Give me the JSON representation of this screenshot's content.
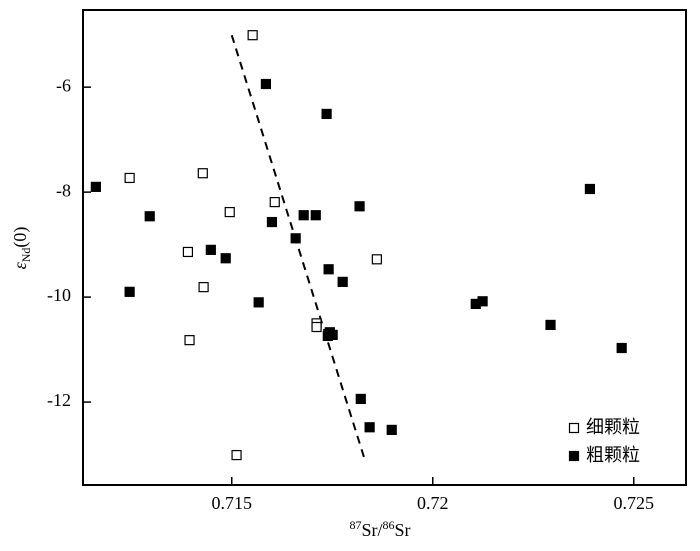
{
  "chart_data": {
    "type": "scatter",
    "x_label": [
      "87",
      "Sr/",
      "86",
      "Sr"
    ],
    "y_label": [
      "ε",
      "Nd",
      "(0)"
    ],
    "xlim": [
      0.7113,
      0.7263
    ],
    "xticks": [
      0.715,
      0.72,
      0.725
    ],
    "ylim": [
      -13.58,
      -4.53
    ],
    "yticks": [
      -6,
      -8,
      -10,
      -12
    ],
    "legend": "lower right",
    "series": [
      {
        "name": "细颗粒",
        "marker": "open",
        "color": "#000000",
        "x": [
          0.71552,
          0.71246,
          0.71428,
          0.71495,
          0.71607,
          0.71391,
          0.71861,
          0.7143,
          0.71711,
          0.71711,
          0.71395,
          0.71512
        ],
        "y": [
          -5.01,
          -7.73,
          -7.64,
          -8.38,
          -8.19,
          -9.14,
          -9.28,
          -9.81,
          -10.5,
          -10.57,
          -10.82,
          -13.01
        ]
      },
      {
        "name": "粗颗粒",
        "marker": "filled",
        "color": "#000000",
        "x": [
          0.71162,
          0.71585,
          0.71736,
          0.71296,
          0.716,
          0.71679,
          0.71709,
          0.71818,
          0.71659,
          0.71448,
          0.71485,
          0.71741,
          0.71776,
          0.71567,
          0.71246,
          0.71744,
          0.71739,
          0.71751,
          0.71821,
          0.71843,
          0.71898,
          0.72107,
          0.72124,
          0.72293,
          0.72391,
          0.7247
        ],
        "y": [
          -7.9,
          -5.94,
          -6.51,
          -8.46,
          -8.57,
          -8.44,
          -8.44,
          -8.27,
          -8.88,
          -9.1,
          -9.26,
          -9.47,
          -9.71,
          -10.1,
          -9.9,
          -10.67,
          -10.74,
          -10.72,
          -11.94,
          -12.48,
          -12.53,
          -10.13,
          -10.08,
          -10.53,
          -7.94,
          -10.97
        ]
      }
    ],
    "trend_line": {
      "x": [
        0.715,
        0.71831
      ],
      "y": [
        -5.01,
        -13.1
      ]
    }
  }
}
